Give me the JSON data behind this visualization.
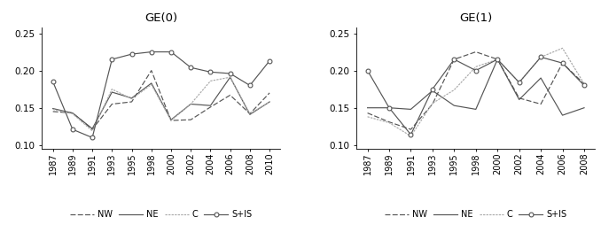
{
  "ge0": {
    "title": "GE(0)",
    "year_labels": [
      "1987",
      "1989",
      "1991",
      "1993",
      "1995",
      "1998",
      "2000",
      "2002",
      "2004",
      "2006",
      "2008",
      "2010"
    ],
    "NW": [
      0.145,
      0.143,
      0.121,
      0.155,
      0.158,
      0.2,
      0.133,
      0.134,
      0.151,
      0.167,
      0.142,
      0.17
    ],
    "NE": [
      0.149,
      0.143,
      0.122,
      0.171,
      0.163,
      0.183,
      0.134,
      0.155,
      0.153,
      0.191,
      0.141,
      0.158
    ],
    "C": [
      0.148,
      0.142,
      0.119,
      0.175,
      0.162,
      0.181,
      0.133,
      0.155,
      0.186,
      0.191,
      0.142,
      0.158
    ],
    "SIS": [
      0.185,
      0.121,
      0.11,
      0.215,
      0.222,
      0.225,
      0.225,
      0.204,
      0.198,
      0.196,
      0.18,
      0.213
    ]
  },
  "ge1": {
    "title": "GE(1)",
    "year_labels": [
      "1987",
      "1989",
      "1991",
      "1993",
      "1995",
      "1998",
      "2000",
      "2002",
      "2004",
      "2006",
      "2008"
    ],
    "NW": [
      0.143,
      0.131,
      0.121,
      0.155,
      0.215,
      0.225,
      0.215,
      0.163,
      0.155,
      0.21,
      0.182
    ],
    "NE": [
      0.15,
      0.15,
      0.148,
      0.173,
      0.153,
      0.148,
      0.215,
      0.161,
      0.19,
      0.14,
      0.15
    ],
    "C": [
      0.138,
      0.13,
      0.112,
      0.156,
      0.174,
      0.205,
      0.215,
      0.184,
      0.218,
      0.23,
      0.182
    ],
    "SIS": [
      0.2,
      0.15,
      0.114,
      0.175,
      0.215,
      0.2,
      0.215,
      0.184,
      0.218,
      0.21,
      0.18
    ]
  },
  "ylim": [
    0.095,
    0.258
  ],
  "yticks": [
    0.1,
    0.15,
    0.2,
    0.25
  ],
  "gray": "#555555",
  "light_gray": "#aaaaaa"
}
